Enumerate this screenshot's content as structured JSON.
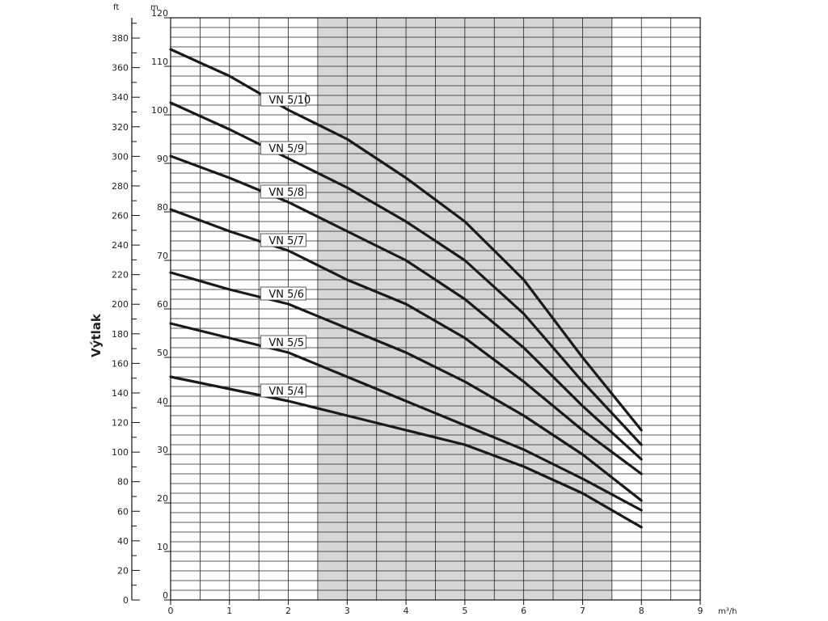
{
  "chart_data": {
    "type": "line",
    "title": "",
    "ylabel": "Výtlak",
    "x_unit": "m³/h",
    "y_unit_m": "m",
    "y_unit_ft": "ft",
    "xlim": [
      0,
      9
    ],
    "ylim_m": [
      0,
      120
    ],
    "ylim_ft": [
      0,
      393.7
    ],
    "grid": true,
    "x_ticks": [
      0,
      1,
      2,
      3,
      4,
      5,
      6,
      7,
      8,
      9
    ],
    "y_ticks_m": [
      0,
      10,
      20,
      30,
      40,
      50,
      60,
      70,
      80,
      90,
      100,
      110,
      120
    ],
    "y_ticks_ft": [
      0,
      20,
      40,
      60,
      80,
      100,
      120,
      140,
      160,
      180,
      200,
      220,
      240,
      260,
      280,
      300,
      320,
      340,
      360,
      380
    ],
    "shaded_band_x": [
      2.5,
      7.5
    ],
    "series": [
      {
        "name": "VN 5/10",
        "x": [
          0,
          1,
          2,
          3,
          4,
          5,
          6,
          7,
          8
        ],
        "values": [
          113.5,
          108,
          101,
          95,
          87,
          78,
          66,
          50,
          35
        ]
      },
      {
        "name": "VN 5/9",
        "x": [
          0,
          1,
          2,
          3,
          4,
          5,
          6,
          7,
          8
        ],
        "values": [
          102.5,
          97,
          91,
          85,
          78,
          70,
          59,
          45,
          32
        ]
      },
      {
        "name": "VN 5/8",
        "x": [
          0,
          1,
          2,
          3,
          4,
          5,
          6,
          7,
          8
        ],
        "values": [
          91.5,
          87,
          82,
          76,
          70,
          62,
          52,
          40,
          29
        ]
      },
      {
        "name": "VN 5/7",
        "x": [
          0,
          1,
          2,
          3,
          4,
          5,
          6,
          7,
          8
        ],
        "values": [
          80.5,
          76,
          72,
          66,
          61,
          54,
          45,
          35,
          26
        ]
      },
      {
        "name": "VN 5/6",
        "x": [
          0,
          1,
          2,
          3,
          4,
          5,
          6,
          7,
          8
        ],
        "values": [
          67.5,
          64,
          61,
          56,
          51,
          45,
          38,
          30,
          20.5
        ]
      },
      {
        "name": "VN 5/5",
        "x": [
          0,
          1,
          2,
          3,
          4,
          5,
          6,
          7,
          8
        ],
        "values": [
          57,
          54,
          51,
          46,
          41,
          36,
          31,
          25,
          18.5
        ]
      },
      {
        "name": "VN 5/4",
        "x": [
          0,
          1,
          2,
          3,
          4,
          5,
          6,
          7,
          8
        ],
        "values": [
          46,
          43.5,
          41,
          38,
          35,
          32,
          27.5,
          22,
          15
        ]
      }
    ],
    "label_x": 2.0
  }
}
